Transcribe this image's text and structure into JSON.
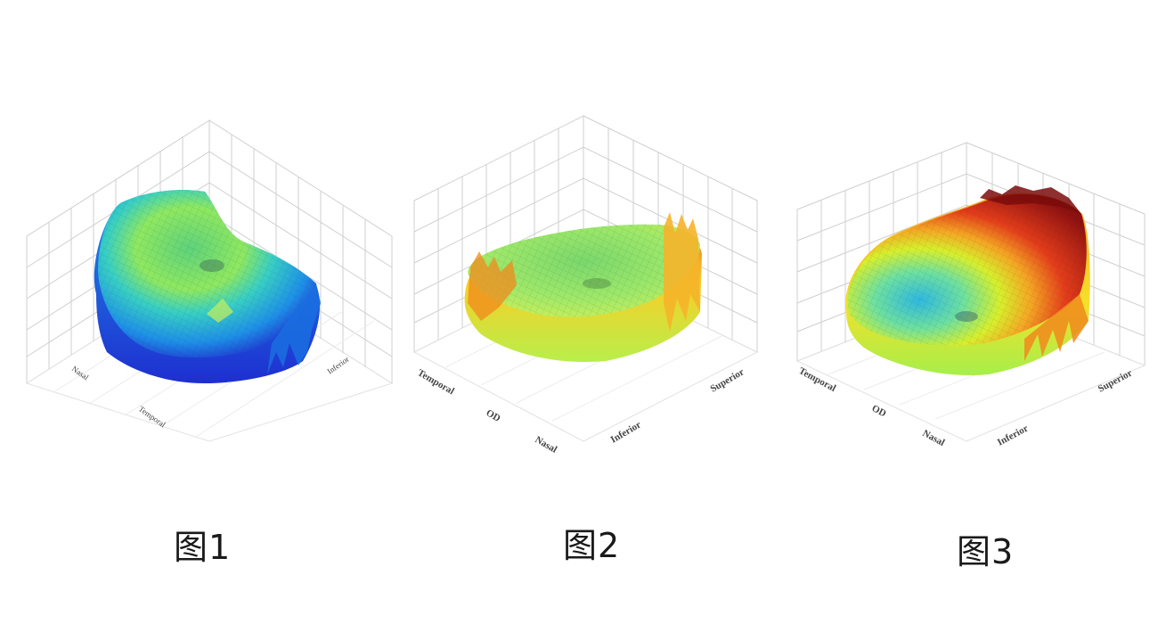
{
  "captions": [
    "图1",
    "图2",
    "图3"
  ],
  "chart_data": [
    {
      "type": "surface-3d",
      "caption": "图1",
      "axis_labels": {
        "left": "Nasal",
        "front_left": "Temporal",
        "front_right": "Inferior"
      },
      "colormap": [
        "#1e2fd0",
        "#1e8fe8",
        "#2fd2c8",
        "#7ee85a",
        "#d8ef2c"
      ]
    },
    {
      "type": "surface-3d",
      "caption": "图2",
      "axis_labels": {
        "left_top": "Temporal",
        "left_mid": "OD",
        "left_bottom": "Nasal",
        "right_bottom": "Inferior",
        "right_top": "Superior"
      },
      "colormap": [
        "#7ee85a",
        "#c8ef2c",
        "#f5e02a",
        "#f5a623",
        "#f07b1c"
      ]
    },
    {
      "type": "surface-3d",
      "caption": "图3",
      "axis_labels": {
        "left_top": "Temporal",
        "left_mid": "OD",
        "left_bottom": "Nasal",
        "right_bottom": "Inferior",
        "right_top": "Superior"
      },
      "colormap": [
        "#2fb8e0",
        "#6ee0a0",
        "#d8ef2c",
        "#f5a623",
        "#e43c1a",
        "#8e1010"
      ]
    }
  ]
}
